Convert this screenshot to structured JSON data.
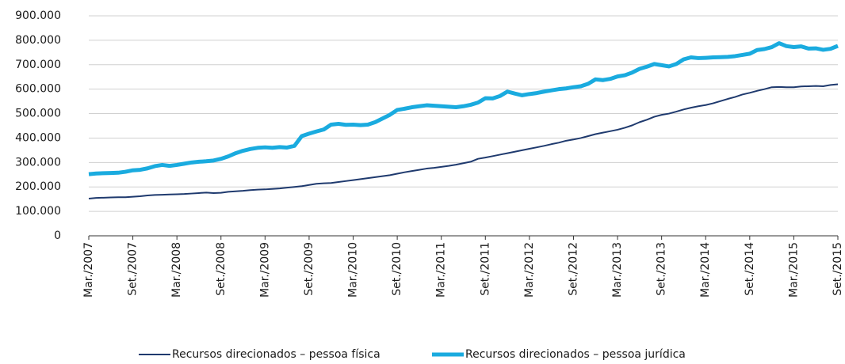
{
  "chart_data": {
    "type": "line",
    "categories": [
      "Mar./2007",
      null,
      null,
      null,
      null,
      null,
      "Set./2007",
      null,
      null,
      null,
      null,
      null,
      "Mar./2008",
      null,
      null,
      null,
      null,
      null,
      "Set./2008",
      null,
      null,
      null,
      null,
      null,
      "Mar./2009",
      null,
      null,
      null,
      null,
      null,
      "Set./2009",
      null,
      null,
      null,
      null,
      null,
      "Mar./2010",
      null,
      null,
      null,
      null,
      null,
      "Set./2010",
      null,
      null,
      null,
      null,
      null,
      "Mar./2011",
      null,
      null,
      null,
      null,
      null,
      "Set./2011",
      null,
      null,
      null,
      null,
      null,
      "Mar./2012",
      null,
      null,
      null,
      null,
      null,
      "Set./2012",
      null,
      null,
      null,
      null,
      null,
      "Mar./2013",
      null,
      null,
      null,
      null,
      null,
      "Set./2013",
      null,
      null,
      null,
      null,
      null,
      "Mar./2014",
      null,
      null,
      null,
      null,
      null,
      "Set./2014",
      null,
      null,
      null,
      null,
      null,
      "Mar./2015",
      null,
      null,
      null,
      null,
      null,
      "Set./2015"
    ],
    "series": [
      {
        "name": "Recursos direcionados – pessoa física",
        "color": "#1f3a6e",
        "width": 2,
        "values": [
          152000,
          155000,
          156000,
          157000,
          158000,
          158000,
          160000,
          162000,
          165000,
          167000,
          168000,
          169000,
          170000,
          171000,
          173000,
          175000,
          177000,
          175000,
          176000,
          180000,
          182000,
          184000,
          187000,
          189000,
          190000,
          192000,
          194000,
          197000,
          200000,
          203000,
          208000,
          213000,
          215000,
          216000,
          220000,
          224000,
          228000,
          232000,
          236000,
          240000,
          244000,
          248000,
          254000,
          260000,
          265000,
          270000,
          275000,
          278000,
          282000,
          286000,
          291000,
          297000,
          303000,
          315000,
          320000,
          326000,
          332000,
          338000,
          344000,
          350000,
          356000,
          362000,
          368000,
          375000,
          381000,
          389000,
          394000,
          400000,
          408000,
          416000,
          422000,
          428000,
          434000,
          442000,
          452000,
          465000,
          475000,
          487000,
          495000,
          500000,
          508000,
          517000,
          524000,
          530000,
          535000,
          542000,
          551000,
          560000,
          568000,
          578000,
          585000,
          593000,
          600000,
          608000,
          609000,
          608000,
          608000,
          611000,
          612000,
          613000,
          612000,
          617000,
          620000
        ]
      },
      {
        "name": "Recursos direcionados – pessoa jurídica",
        "color": "#1aabdf",
        "width": 5,
        "values": [
          252000,
          255000,
          256000,
          257000,
          258000,
          262000,
          268000,
          270000,
          276000,
          285000,
          290000,
          286000,
          290000,
          295000,
          300000,
          303000,
          305000,
          308000,
          315000,
          325000,
          338000,
          348000,
          355000,
          360000,
          362000,
          360000,
          363000,
          361000,
          368000,
          408000,
          418000,
          427000,
          435000,
          455000,
          458000,
          454000,
          455000,
          453000,
          455000,
          465000,
          480000,
          495000,
          515000,
          520000,
          526000,
          530000,
          534000,
          532000,
          530000,
          528000,
          526000,
          530000,
          536000,
          545000,
          563000,
          562000,
          572000,
          590000,
          582000,
          575000,
          580000,
          584000,
          590000,
          595000,
          600000,
          603000,
          608000,
          612000,
          622000,
          640000,
          637000,
          642000,
          652000,
          657000,
          668000,
          683000,
          692000,
          703000,
          698000,
          693000,
          703000,
          722000,
          730000,
          727000,
          728000,
          730000,
          731000,
          732000,
          735000,
          740000,
          745000,
          760000,
          764000,
          772000,
          788000,
          776000,
          772000,
          775000,
          766000,
          767000,
          761000,
          765000,
          777000
        ]
      }
    ],
    "ylim": [
      0,
      900000
    ],
    "yticks": [
      0,
      {
        "value": 100000,
        "label": "100.000"
      },
      {
        "value": 200000,
        "label": "200.000"
      },
      {
        "value": 300000,
        "label": "300.000"
      },
      {
        "value": 400000,
        "label": "400.000"
      },
      {
        "value": 500000,
        "label": "500.000"
      },
      {
        "value": 600000,
        "label": "600.000"
      },
      {
        "value": 700000,
        "label": "700.000"
      },
      {
        "value": 800000,
        "label": "800.000"
      },
      {
        "value": 900000,
        "label": "900.000"
      }
    ],
    "grid": true,
    "legend": "bottom"
  }
}
